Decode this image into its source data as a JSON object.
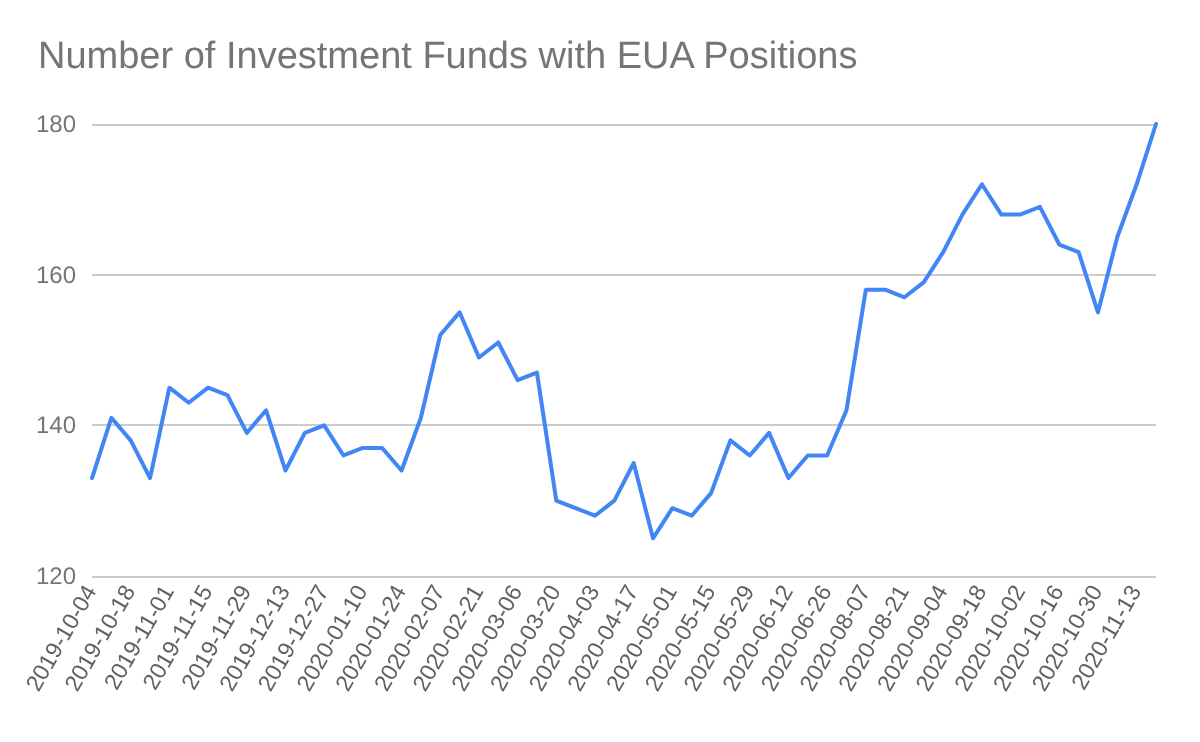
{
  "chart_data": {
    "type": "line",
    "title": "Number of Investment Funds with EUA Positions",
    "categories": [
      "2019-10-04",
      null,
      "2019-10-18",
      null,
      "2019-11-01",
      null,
      "2019-11-15",
      null,
      "2019-11-29",
      null,
      "2019-12-13",
      null,
      "2019-12-27",
      null,
      "2020-01-10",
      null,
      "2020-01-24",
      null,
      "2020-02-07",
      null,
      "2020-02-21",
      null,
      "2020-03-06",
      null,
      "2020-03-20",
      null,
      "2020-04-03",
      null,
      "2020-04-17",
      null,
      "2020-05-01",
      null,
      "2020-05-15",
      null,
      "2020-05-29",
      null,
      "2020-06-12",
      null,
      "2020-06-26",
      null,
      "2020-08-07",
      null,
      "2020-08-21",
      null,
      "2020-09-04",
      null,
      "2020-09-18",
      null,
      "2020-10-02",
      null,
      "2020-10-16",
      null,
      "2020-10-30",
      null,
      "2020-11-13",
      null
    ],
    "series": [
      {
        "color": "#4285f4",
        "values": [
          133,
          141,
          138,
          133,
          145,
          143,
          145,
          144,
          139,
          142,
          134,
          139,
          140,
          136,
          137,
          137,
          134,
          141,
          152,
          155,
          149,
          151,
          146,
          147,
          130,
          129,
          128,
          130,
          135,
          125,
          129,
          128,
          131,
          138,
          136,
          139,
          133,
          136,
          136,
          142,
          158,
          158,
          157,
          159,
          163,
          168,
          172,
          168,
          168,
          169,
          164,
          163,
          155,
          165,
          172,
          180
        ]
      }
    ],
    "ylim": [
      120,
      180
    ],
    "yticks": [
      120,
      140,
      160,
      180
    ],
    "grid": "y",
    "marker": "none",
    "line_style": "solid"
  }
}
